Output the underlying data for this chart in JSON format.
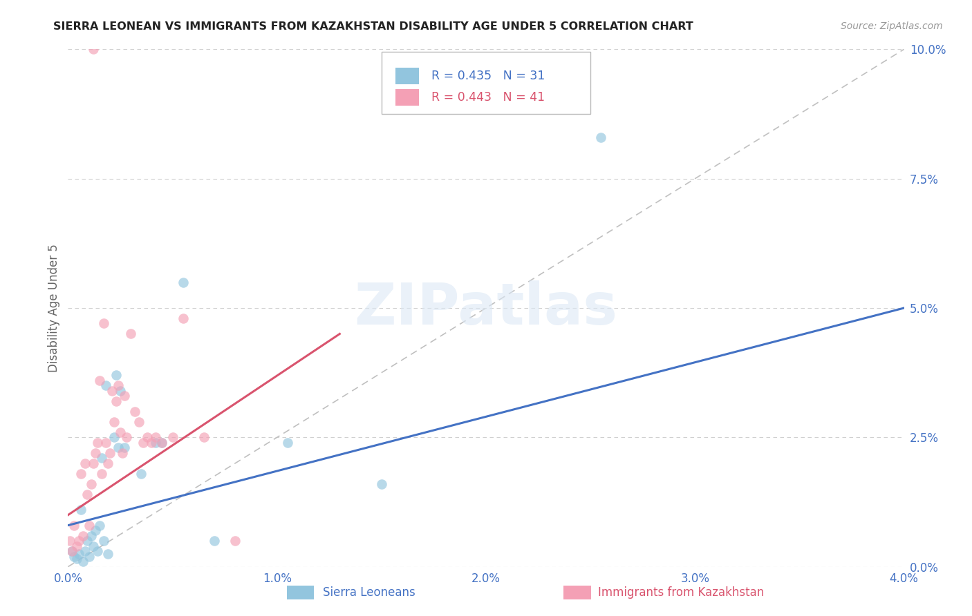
{
  "title": "SIERRA LEONEAN VS IMMIGRANTS FROM KAZAKHSTAN DISABILITY AGE UNDER 5 CORRELATION CHART",
  "source": "Source: ZipAtlas.com",
  "xlabel_vals": [
    0.0,
    1.0,
    2.0,
    3.0,
    4.0
  ],
  "ylabel_vals": [
    0.0,
    2.5,
    5.0,
    7.5,
    10.0
  ],
  "xlim": [
    0.0,
    4.0
  ],
  "ylim": [
    0.0,
    10.0
  ],
  "ylabel": "Disability Age Under 5",
  "legend_label_1": "Sierra Leoneans",
  "legend_label_2": "Immigrants from Kazakhstan",
  "r1": 0.435,
  "n1": 31,
  "r2": 0.443,
  "n2": 41,
  "color_blue": "#92c5de",
  "color_pink": "#f4a0b5",
  "color_blue_line": "#4472c4",
  "color_pink_line": "#d9546e",
  "color_blue_text": "#4472c4",
  "color_pink_text": "#d9546e",
  "scatter_blue_x": [
    0.02,
    0.03,
    0.04,
    0.05,
    0.06,
    0.07,
    0.08,
    0.09,
    0.1,
    0.11,
    0.12,
    0.13,
    0.14,
    0.15,
    0.16,
    0.17,
    0.18,
    0.19,
    0.22,
    0.23,
    0.24,
    0.25,
    0.27,
    0.35,
    0.42,
    0.45,
    0.55,
    0.7,
    1.05,
    1.5,
    2.55
  ],
  "scatter_blue_y": [
    0.3,
    0.2,
    0.15,
    0.25,
    1.1,
    0.1,
    0.3,
    0.5,
    0.2,
    0.6,
    0.4,
    0.7,
    0.3,
    0.8,
    2.1,
    0.5,
    3.5,
    0.25,
    2.5,
    3.7,
    2.3,
    3.4,
    2.3,
    1.8,
    2.4,
    2.4,
    5.5,
    0.5,
    2.4,
    1.6,
    8.3
  ],
  "scatter_pink_x": [
    0.01,
    0.02,
    0.03,
    0.04,
    0.05,
    0.06,
    0.07,
    0.08,
    0.09,
    0.1,
    0.11,
    0.12,
    0.13,
    0.14,
    0.15,
    0.16,
    0.17,
    0.18,
    0.19,
    0.2,
    0.21,
    0.22,
    0.23,
    0.24,
    0.25,
    0.26,
    0.27,
    0.28,
    0.3,
    0.32,
    0.34,
    0.36,
    0.38,
    0.4,
    0.42,
    0.45,
    0.5,
    0.55,
    0.65,
    0.8,
    0.12
  ],
  "scatter_pink_y": [
    0.5,
    0.3,
    0.8,
    0.4,
    0.5,
    1.8,
    0.6,
    2.0,
    1.4,
    0.8,
    1.6,
    2.0,
    2.2,
    2.4,
    3.6,
    1.8,
    4.7,
    2.4,
    2.0,
    2.2,
    3.4,
    2.8,
    3.2,
    3.5,
    2.6,
    2.2,
    3.3,
    2.5,
    4.5,
    3.0,
    2.8,
    2.4,
    2.5,
    2.4,
    2.5,
    2.4,
    2.5,
    4.8,
    2.5,
    0.5,
    10.0
  ],
  "blue_trendline_x": [
    0.0,
    4.0
  ],
  "blue_trendline_y": [
    0.8,
    5.0
  ],
  "pink_trendline_x": [
    0.0,
    1.3
  ],
  "pink_trendline_y": [
    1.0,
    4.5
  ],
  "ref_line_x": [
    0.0,
    4.0
  ],
  "ref_line_y": [
    0.0,
    10.0
  ],
  "watermark_text": "ZIPatlas",
  "bg_color": "#ffffff",
  "grid_color": "#d0d0d0"
}
